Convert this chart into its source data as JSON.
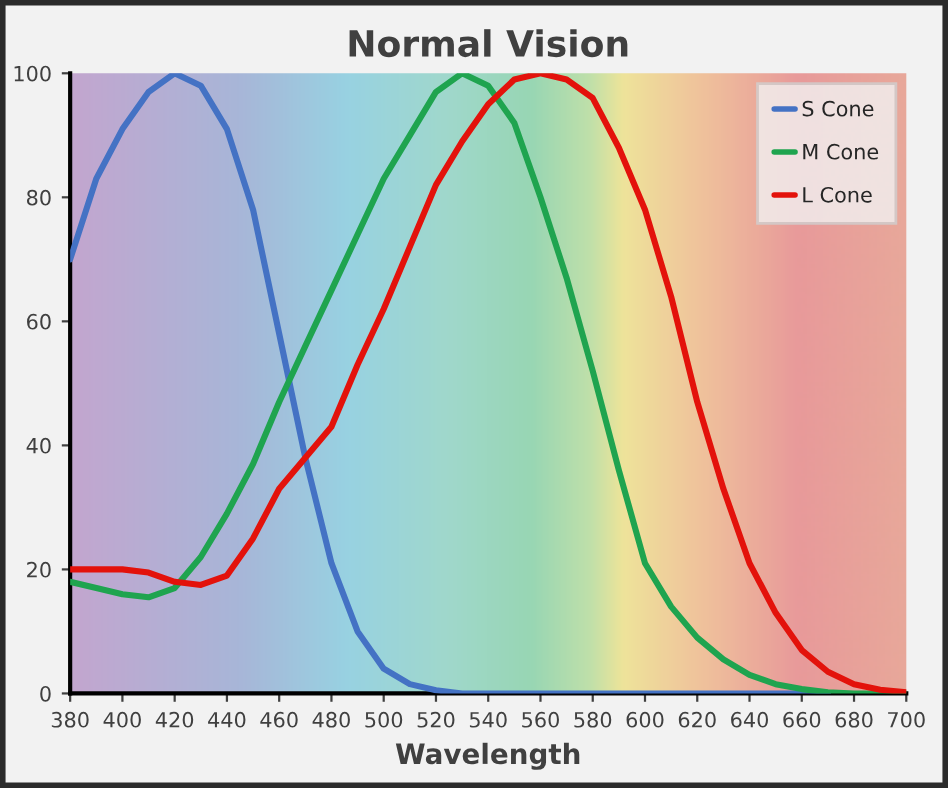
{
  "chart_data": {
    "type": "line",
    "title": "Normal Vision",
    "xlabel": "Wavelength",
    "x": [
      380,
      390,
      400,
      410,
      420,
      430,
      440,
      450,
      460,
      470,
      480,
      490,
      500,
      510,
      520,
      530,
      540,
      550,
      560,
      570,
      580,
      590,
      600,
      610,
      620,
      630,
      640,
      650,
      660,
      670,
      680,
      690,
      700
    ],
    "series": [
      {
        "name": "S Cone",
        "color": "#4472c4",
        "values": [
          70,
          83,
          91,
          97,
          100,
          98,
          91,
          78,
          58,
          38,
          21,
          10,
          4,
          1.5,
          0.5,
          0,
          0,
          0,
          0,
          0,
          0,
          0,
          0,
          0,
          0,
          0,
          0,
          0,
          0,
          0,
          null,
          null,
          null
        ]
      },
      {
        "name": "M Cone",
        "color": "#1fa44f",
        "values": [
          18,
          17,
          16,
          15.5,
          17,
          22,
          29,
          37,
          47,
          56,
          65,
          74,
          83,
          90,
          97,
          100,
          98,
          92,
          80,
          67,
          52,
          36,
          21,
          14,
          9,
          5.5,
          3,
          1.5,
          0.7,
          0.2,
          0,
          0,
          0
        ]
      },
      {
        "name": "L Cone",
        "color": "#e3120b",
        "values": [
          20,
          20,
          20,
          19.5,
          18,
          17.5,
          19,
          25,
          33,
          38,
          43,
          53,
          62,
          72,
          82,
          89,
          95,
          99,
          100,
          99,
          96,
          88,
          78,
          64,
          47,
          33,
          21,
          13,
          7,
          3.5,
          1.5,
          0.6,
          0.2
        ]
      }
    ],
    "xlim": [
      380,
      700
    ],
    "ylim": [
      0,
      100
    ],
    "xticks": [
      380,
      400,
      420,
      440,
      460,
      480,
      500,
      520,
      540,
      560,
      580,
      600,
      620,
      640,
      660,
      680,
      700
    ],
    "yticks": [
      0,
      20,
      40,
      60,
      80,
      100
    ],
    "grid": false,
    "legend": "top right",
    "marker": "none",
    "line_style": "solid"
  }
}
